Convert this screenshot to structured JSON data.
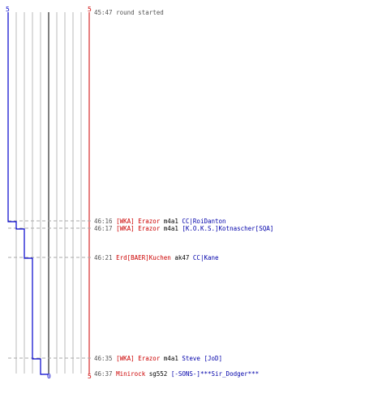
{
  "scoreboard": {
    "left_team_max": "5",
    "right_team_max": "5",
    "right_team_final": "5",
    "left_team_final": "0",
    "colors": {
      "team_a": "#0000cc",
      "team_b": "#cc0000",
      "grid": "#bbbbbb",
      "center": "#555555"
    }
  },
  "round_start": {
    "time": "45:47",
    "text": "round started"
  },
  "events": [
    {
      "time": "46:16",
      "killer_team": "[WKA]",
      "killer": "Erazor",
      "weapon": "m4a1",
      "victim": "CC|RoiDanton",
      "victim_color": "blue",
      "left_score_after": 4
    },
    {
      "time": "46:17",
      "killer_team": "[WKA]",
      "killer": "Erazor",
      "weapon": "m4a1",
      "victim": "[K.O.K.S.]Kotnascher[SQA]",
      "victim_color": "blue",
      "left_score_after": 3
    },
    {
      "time": "46:21",
      "killer_team": "",
      "killer": "Erd[BAER]Kuchen",
      "weapon": "ak47",
      "victim": "CC|Kane",
      "victim_color": "blue",
      "left_score_after": 2
    },
    {
      "time": "46:35",
      "killer_team": "[WKA]",
      "killer": "Erazor",
      "weapon": "m4a1",
      "victim": "Steve [JoD]",
      "victim_color": "blue",
      "left_score_after": 1
    },
    {
      "time": "46:37",
      "killer_team": "",
      "killer": "Minirock",
      "weapon": "sg552",
      "victim": "[-SONS-]***Sir_Dodger***",
      "victim_color": "blue",
      "left_score_after": 0
    }
  ]
}
